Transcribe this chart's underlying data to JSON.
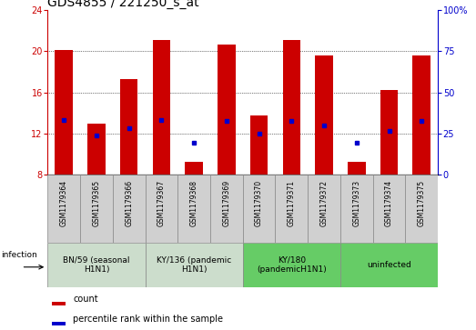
{
  "title": "GDS4855 / 221250_s_at",
  "samples": [
    "GSM1179364",
    "GSM1179365",
    "GSM1179366",
    "GSM1179367",
    "GSM1179368",
    "GSM1179369",
    "GSM1179370",
    "GSM1179371",
    "GSM1179372",
    "GSM1179373",
    "GSM1179374",
    "GSM1179375"
  ],
  "bar_values": [
    20.1,
    13.0,
    17.3,
    21.1,
    9.3,
    20.6,
    13.8,
    21.1,
    19.6,
    9.3,
    16.2,
    19.6
  ],
  "bar_base": 8.0,
  "dot_values": [
    13.3,
    11.8,
    12.5,
    13.3,
    11.1,
    13.2,
    12.0,
    13.2,
    12.8,
    11.1,
    12.3,
    13.2
  ],
  "ylim_left": [
    8,
    24
  ],
  "yticks_left": [
    8,
    12,
    16,
    20,
    24
  ],
  "ylim_right": [
    0,
    100
  ],
  "yticks_right": [
    0,
    25,
    50,
    75,
    100
  ],
  "yticklabels_right": [
    "0",
    "25",
    "50",
    "75",
    "100%"
  ],
  "bar_color": "#cc0000",
  "dot_color": "#0000cc",
  "groups": [
    {
      "label": "BN/59 (seasonal\nH1N1)",
      "start": 0,
      "end": 3,
      "color": "#ccddcc"
    },
    {
      "label": "KY/136 (pandemic\nH1N1)",
      "start": 3,
      "end": 6,
      "color": "#ccddcc"
    },
    {
      "label": "KY/180\n(pandemicH1N1)",
      "start": 6,
      "end": 9,
      "color": "#66cc66"
    },
    {
      "label": "uninfected",
      "start": 9,
      "end": 12,
      "color": "#66cc66"
    }
  ],
  "infection_label": "infection",
  "legend_count_label": "count",
  "legend_percentile_label": "percentile rank within the sample",
  "background_color": "#ffffff",
  "tick_label_color_left": "#cc0000",
  "tick_label_color_right": "#0000cc",
  "grid_color": "#000000",
  "dotted_grid_values": [
    12,
    16,
    20
  ],
  "title_fontsize": 10,
  "tick_fontsize": 7,
  "sample_fontsize": 5.5,
  "group_fontsize": 6.5,
  "legend_fontsize": 7
}
